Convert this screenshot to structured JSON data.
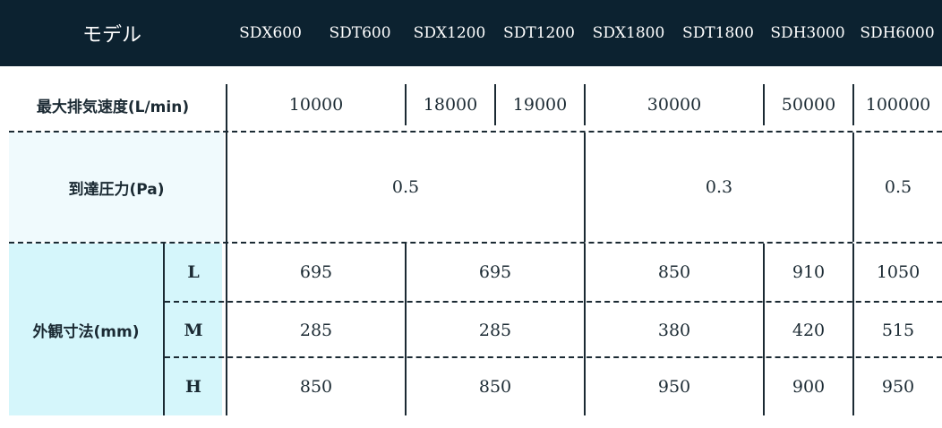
{
  "header": {
    "model_label": "モデル",
    "models": [
      "SDX600",
      "SDT600",
      "SDX1200",
      "SDT1200",
      "SDX1800",
      "SDT1800",
      "SDH3000",
      "SDH6000"
    ]
  },
  "rows": {
    "speed": {
      "label": "最大排気速度(L/min)",
      "values": [
        "10000",
        "18000",
        "19000",
        "30000",
        "50000",
        "100000"
      ]
    },
    "pressure": {
      "label": "到達圧力(Pa)",
      "values": [
        "0.5",
        "0.3",
        "0.5"
      ]
    },
    "dimensions": {
      "label": "外観寸法(mm)",
      "sub_labels": [
        "L",
        "M",
        "H"
      ],
      "L": [
        "695",
        "695",
        "850",
        "910",
        "1050"
      ],
      "M": [
        "285",
        "285",
        "380",
        "420",
        "515"
      ],
      "H": [
        "850",
        "850",
        "950",
        "900",
        "950"
      ]
    }
  },
  "colors": {
    "header_bg": "#0c2230",
    "pressure_label_bg": "#f0fafd",
    "dimension_label_bg": "#d5f6fb"
  }
}
